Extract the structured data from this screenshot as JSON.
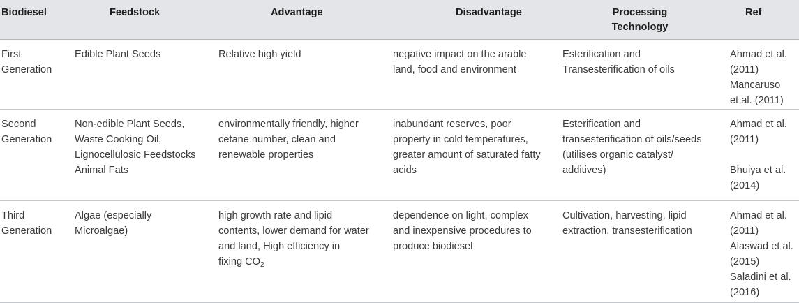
{
  "headers": {
    "biodiesel": "Biodiesel",
    "feedstock": "Feedstock",
    "advantage": "Advantage",
    "disadvantage": "Disadvantage",
    "processing_line1": "Processing",
    "processing_line2": "Technology",
    "ref": "Ref"
  },
  "rows": [
    {
      "biodiesel": [
        "First",
        "Generation"
      ],
      "feedstock": [
        "Edible Plant Seeds"
      ],
      "advantage": [
        "Relative high yield"
      ],
      "disadvantage": [
        "negative impact on the arable",
        "land, food and environment"
      ],
      "processing": [
        "Esterification and",
        "Transesterification of oils"
      ],
      "ref": [
        "Ahmad et al.",
        "(2011)",
        "Mancaruso",
        "et al. (2011)"
      ]
    },
    {
      "biodiesel": [
        "Second",
        "Generation"
      ],
      "feedstock": [
        "Non-edible Plant Seeds,",
        "Waste Cooking Oil,",
        "Lignocellulosic Feedstocks",
        "Animal Fats"
      ],
      "advantage": [
        "environmentally friendly, higher",
        "cetane number, clean and",
        "renewable properties"
      ],
      "disadvantage": [
        "inabundant reserves, poor",
        "property in cold temperatures,",
        "greater amount of saturated fatty",
        "acids"
      ],
      "processing": [
        "Esterification and",
        "transesterification of oils/seeds",
        "(utilises organic catalyst/",
        "additives)"
      ],
      "ref": [
        "Ahmad et al.",
        "(2011)",
        "",
        "Bhuiya et al.",
        "(2014)"
      ]
    },
    {
      "biodiesel": [
        "Third",
        "Generation"
      ],
      "feedstock": [
        "Algae (especially",
        "Microalgae)"
      ],
      "advantage": [
        "high growth rate and lipid",
        "contents, lower demand for water",
        "and land, High efficiency in"
      ],
      "advantage_last_prefix": "fixing CO",
      "advantage_last_sub": "2",
      "disadvantage": [
        "dependence on light, complex",
        "and inexpensive procedures to",
        "produce biodiesel"
      ],
      "processing": [
        "Cultivation, harvesting, lipid",
        "extraction, transesterification"
      ],
      "ref": [
        "Ahmad et al.",
        "(2011)",
        "Alaswad et al.",
        "(2015)",
        "Saladini et al.",
        "(2016)"
      ]
    }
  ]
}
